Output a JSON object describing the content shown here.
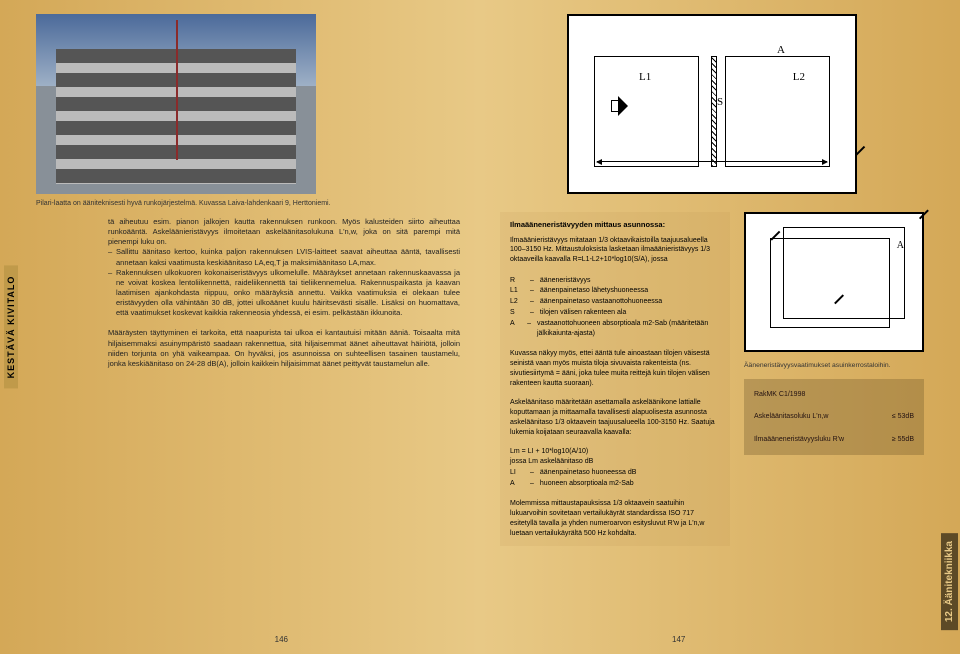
{
  "spine_label": "KESTÄVÄ KIVITALO",
  "right_tab": "12. Äänitekniikka",
  "left": {
    "caption": "Pilari-laatta on ääniteknisesti hyvä runkojärjestelmä. Kuvassa Laiva-lahdenkaari 9, Herttoniemi.",
    "para_lead": "tä aiheutuu esim. pianon jalkojen kautta rakennuksen runkoon. Myös kalusteiden siirto aiheuttaa runkoääntä. Askeläänieristävyys ilmoitetaan askeläänitasolukuna L'n,w, joka on sitä parempi mitä pienempi luku on.",
    "bullet1": "Sallittu äänitaso kertoo, kuinka paljon rakennuksen LVIS-laitteet saavat aiheuttaa ääntä, tavallisesti annetaan kaksi vaatimusta keskiäänitaso LA,eq,T ja maksimiäänitaso LA,max.",
    "bullet2": "Rakennuksen ulkokuoren kokonaiseristävyys ulkomelulle. Määräykset annetaan rakennuskaavassa ja ne voivat koskea lentoliikennettä, raideliikennettä tai tieliikennemelua. Rakennuspaikasta ja kaavan laatimisen ajankohdasta riippuu, onko määräyksiä annettu. Vaikka vaatimuksia ei olekaan tulee eristävyyden olla vähintään 30 dB, jottei ulkoäänet kuulu häiritsevästi sisälle. Lisäksi on huomattava, että vaatimukset koskevat kaikkia rakenneosia yhdessä, ei esim. pelkästään ikkunoita.",
    "para2": "Määräysten täyttyminen ei tarkoita, että naapurista tai ulkoa ei kantautuisi mitään ääniä. Toisaalta mitä hiljaisemmaksi asuinympäristö saadaan rakennettua, sitä hiljaisemmat äänet aiheuttavat häiriötä, jolloin niiden torjunta on yhä vaikeampaa. On hyväksi, jos asunnoissa on suhteellisen tasainen taustamelu, jonka keskiäänitaso on 24-28 dB(A), jolloin kaikkein hiljaisimmat äänet peittyvät taustamelun alle.",
    "pagenum": "146"
  },
  "diagram": {
    "L1": "L1",
    "L2": "L2",
    "A": "A",
    "S": "S"
  },
  "right": {
    "box_title": "Ilmaääneneristävyyden mittaus asunnossa:",
    "box_p1": "Ilmaäänieristävyys mitataan 1/3 oktaavikaistoilla taajuusalueella 100–3150 Hz. Mittaustuloksista lasketaan ilmaäänieristävyys 1/3 oktaaveilla kaavalla R=L1-L2+10*log10(S/A), jossa",
    "defs1": [
      {
        "t": "R",
        "d": "ääneneristävyys"
      },
      {
        "t": "L1",
        "d": "äänenpainetaso lähetyshuoneessa"
      },
      {
        "t": "L2",
        "d": "äänenpainetaso vastaanottohuoneessa"
      },
      {
        "t": "S",
        "d": "tilojen välisen rakenteen ala"
      },
      {
        "t": "A",
        "d": "vastaanottohuoneen absorptioala m2-Sab (määritetään jälkikaiunta-ajasta)"
      }
    ],
    "box_p2": "Kuvassa näkyy myös, ettei ääntä tule ainoastaan tilojen väisestä seinistä vaan myös muista tiloja sivuvaista rakenteista (ns. sivutiesiirtymä = ääni, joka tulee muita reittejä kuin tilojen välisen rakenteen kautta suoraan).",
    "box_p3": "Askeläänitaso määritetään asettamalla askeläänikone lattialle koputtamaan ja mittaamalla tavallisesti alapuolisesta asunnosta askeläänitaso 1/3 oktaavein taajuusalueella 100-3150 Hz. Saatuja lukemia koijataan seuraavalla kaavalla:",
    "box_formula": "Lm = LI + 10*log10(A/10)",
    "box_sub": "jossa Lm askeläänitaso dB",
    "defs2": [
      {
        "t": "LI",
        "d": "äänenpainetaso huoneessa dB"
      },
      {
        "t": "A",
        "d": "huoneen absorptioala m2-Sab"
      }
    ],
    "box_p4": "Molemmissa mittaustapauksissa 1/3 oktaavein saatuihin lukuarvoihin sovitetaan vertailukäyrät standardissa ISO 717 esitetyllä tavalla ja yhden numeroarvon esitysluvut R'w ja L'n,w luetaan vertailukäyrältä 500 Hz kohdalta.",
    "mini_caption": "Ääneneristävyysvaatimukset asuinkerrostaloihin.",
    "mini_A": "A",
    "req_title": "RakMK C1/1998",
    "req1_label": "Askeläänitasoluku L'n,w",
    "req1_val": "≤ 53dB",
    "req2_label": "Ilmaääneneristävyysluku R'w",
    "req2_val": "≥ 55dB",
    "pagenum": "147"
  },
  "colors": {
    "page_bg_left": "#d4a857",
    "page_bg_right": "#d4a857",
    "text": "#222222",
    "frame": "#000000",
    "req_bg": "rgba(90,70,30,0.28)"
  }
}
